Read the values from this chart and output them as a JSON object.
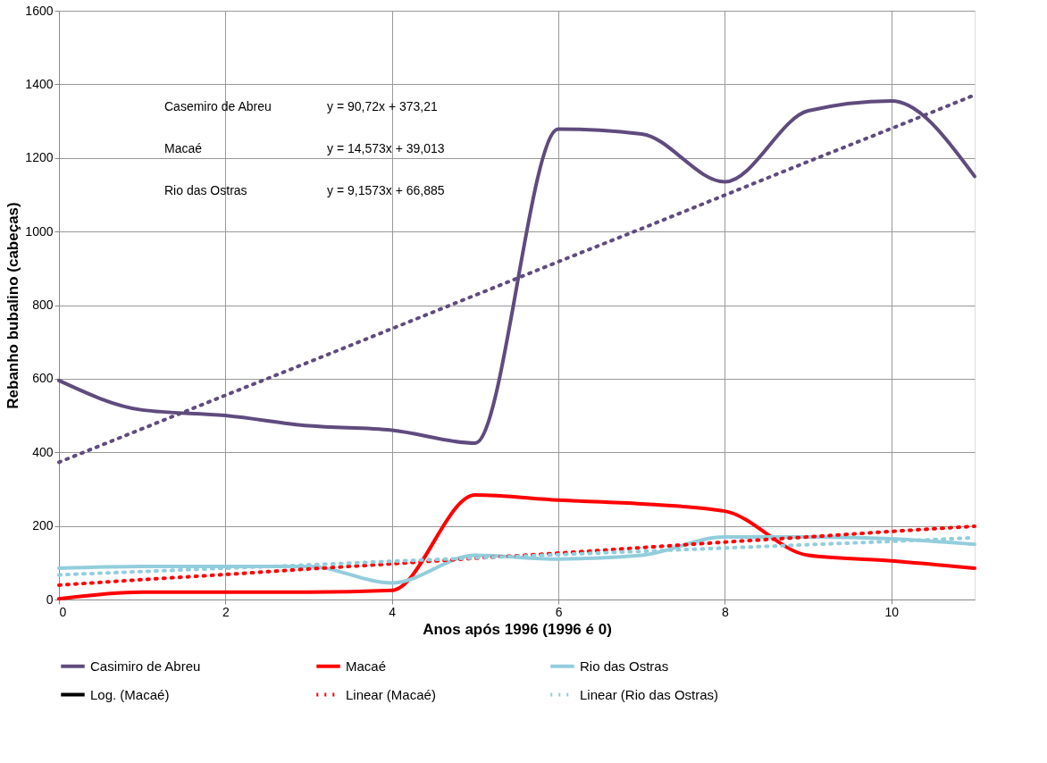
{
  "chart_data": {
    "type": "line",
    "xlabel": "Anos após 1996 (1996 é 0)",
    "ylabel": "Rebanho bubalino (cabeças)",
    "x": [
      0,
      1,
      2,
      3,
      4,
      5,
      6,
      7,
      8,
      9,
      10,
      11
    ],
    "xlim": [
      0,
      11
    ],
    "xticks": [
      0,
      2,
      4,
      6,
      8,
      10
    ],
    "ylim": [
      0,
      1600
    ],
    "yticks": [
      0,
      200,
      400,
      600,
      800,
      1000,
      1200,
      1400,
      1600
    ],
    "grid": true,
    "legend": "bottom",
    "marker": "none",
    "series": [
      {
        "name": "Casimiro de Abreu",
        "color": "#5f4b7e",
        "line_style": "solid",
        "values": [
          595,
          515,
          500,
          472,
          460,
          425,
          1278,
          1265,
          1135,
          1328,
          1355,
          1150
        ]
      },
      {
        "name": "Macaé",
        "color": "#ff0000",
        "line_style": "solid",
        "values": [
          2,
          20,
          20,
          20,
          25,
          284,
          270,
          260,
          240,
          120,
          105,
          85
        ]
      },
      {
        "name": "Rio das Ostras",
        "color": "#92cddc",
        "line_style": "solid",
        "values": [
          85,
          90,
          90,
          90,
          45,
          120,
          110,
          120,
          170,
          170,
          165,
          150
        ]
      },
      {
        "name": "Log. (Macaé)",
        "color": "#000000",
        "line_style": "solid",
        "values": [
          null,
          null,
          null,
          null,
          null,
          null,
          null,
          null,
          null,
          null,
          null,
          null
        ]
      },
      {
        "name": "Linear (Macaé)",
        "color": "#ff0000",
        "line_style": "dotted",
        "values": [
          39,
          54,
          68,
          83,
          97,
          112,
          126,
          141,
          156,
          170,
          185,
          199
        ]
      },
      {
        "name": "Linear (Rio das Ostras)",
        "color": "#92cddc",
        "line_style": "dotted",
        "values": [
          67,
          76,
          85,
          94,
          104,
          113,
          122,
          131,
          140,
          149,
          158,
          168
        ]
      },
      {
        "color": "#5f4b7e",
        "line_style": "dotted",
        "values": [
          373,
          464,
          555,
          645,
          736,
          827,
          918,
          1008,
          1099,
          1190,
          1280,
          1371
        ]
      }
    ],
    "annotations": [
      "Casemiro de Abreu",
      "y = 90,72x + 373,21",
      "Macaé",
      "y = 14,573x + 39,013",
      "Rio das Ostras",
      "y = 9,1573x + 66,885"
    ]
  }
}
